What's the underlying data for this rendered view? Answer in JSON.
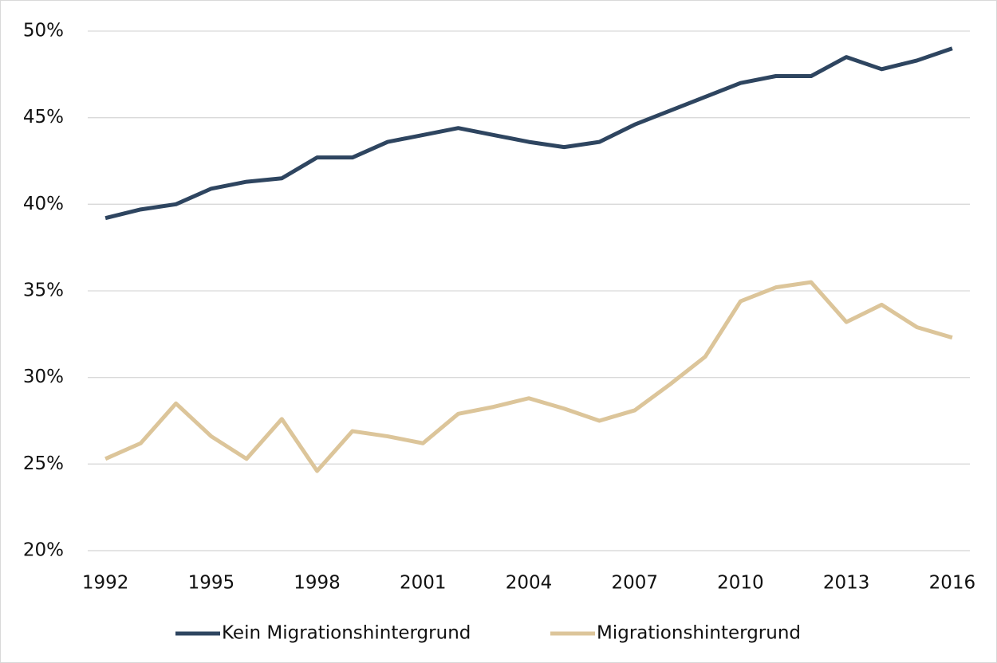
{
  "chart_data": {
    "type": "line",
    "x": [
      1992,
      1993,
      1994,
      1995,
      1996,
      1997,
      1998,
      1999,
      2000,
      2001,
      2002,
      2003,
      2004,
      2005,
      2006,
      2007,
      2008,
      2009,
      2010,
      2011,
      2012,
      2013,
      2014,
      2015,
      2016
    ],
    "series": [
      {
        "name": "Kein Migrationshintergrund",
        "color": "#2e4560",
        "values": [
          39.2,
          39.7,
          40.0,
          40.9,
          41.3,
          41.5,
          42.7,
          42.7,
          43.6,
          44.0,
          44.4,
          44.0,
          43.6,
          43.3,
          43.6,
          44.6,
          45.4,
          46.2,
          47.0,
          47.4,
          47.4,
          48.5,
          47.8,
          48.3,
          49.0
        ]
      },
      {
        "name": "Migrationshintergrund",
        "color": "#dcc59a",
        "values": [
          25.3,
          26.2,
          28.5,
          26.6,
          25.3,
          27.6,
          24.6,
          26.9,
          26.6,
          26.2,
          27.9,
          28.3,
          28.8,
          28.2,
          27.5,
          28.1,
          29.6,
          31.2,
          34.4,
          35.2,
          35.5,
          33.2,
          34.2,
          32.9,
          32.3
        ]
      }
    ],
    "xlim": [
      1991.5,
      2016.5
    ],
    "xticks": [
      1992,
      1995,
      1998,
      2001,
      2004,
      2007,
      2010,
      2013,
      2016
    ],
    "ylim": [
      20,
      50
    ],
    "yticks": [
      {
        "value": 20,
        "label": "20%"
      },
      {
        "value": 25,
        "label": "25%"
      },
      {
        "value": 30,
        "label": "30%"
      },
      {
        "value": 35,
        "label": "35%"
      },
      {
        "value": 40,
        "label": "40%"
      },
      {
        "value": 45,
        "label": "45%"
      },
      {
        "value": 50,
        "label": "50%"
      }
    ],
    "grid": true,
    "legend": "bottom"
  }
}
